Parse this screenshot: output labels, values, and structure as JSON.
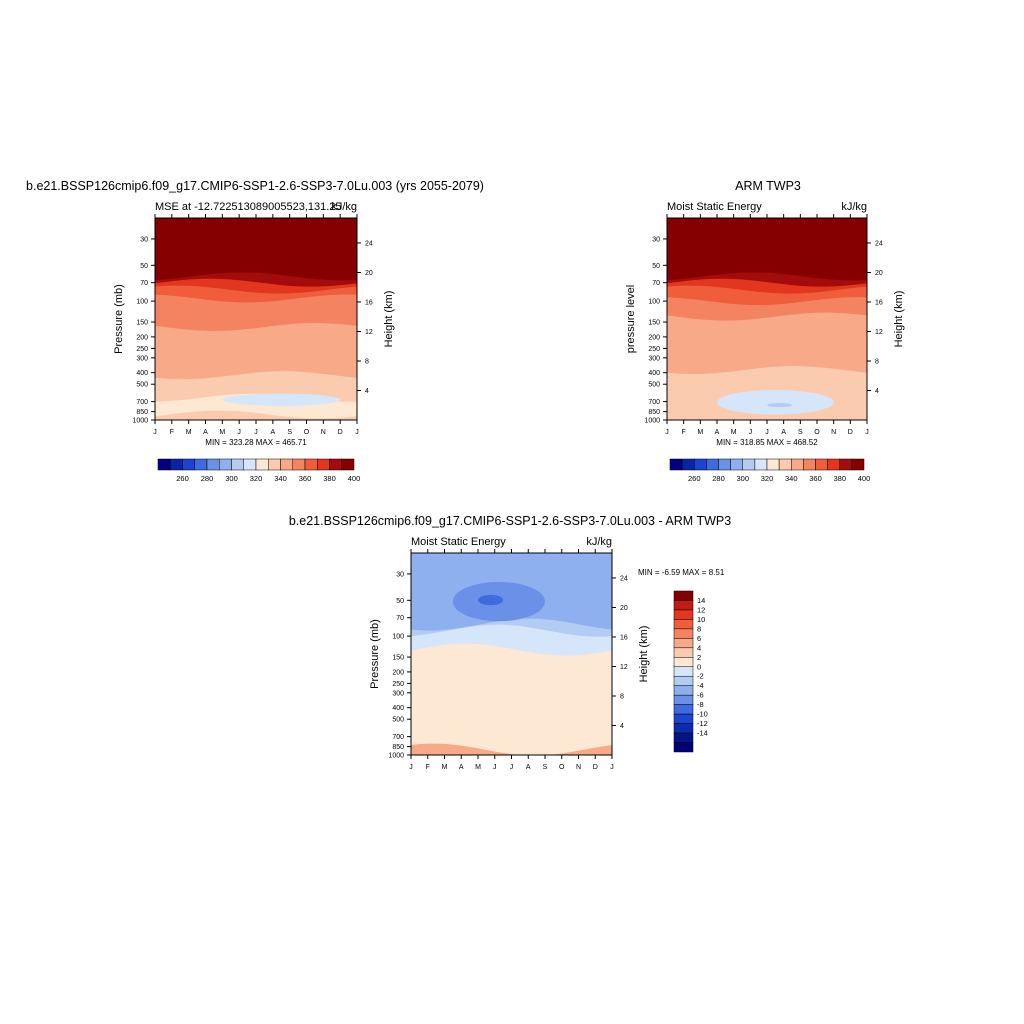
{
  "chart_data": [
    {
      "type": "heatmap",
      "title": "b.e21.BSSP126cmip6.f09_g17.CMIP6-SSP1-2.6-SSP3-7.0Lu.003 (yrs 2055-2079)",
      "left_string": "MSE at -12.722513089005523,131.25",
      "right_string": "kJ/kg",
      "ylabel": "Pressure (mb)",
      "y2label": "Height (km)",
      "x_ticks": [
        "J",
        "F",
        "M",
        "A",
        "M",
        "J",
        "J",
        "A",
        "S",
        "O",
        "N",
        "D",
        "J"
      ],
      "y_ticks": [
        30,
        50,
        70,
        100,
        150,
        200,
        250,
        300,
        400,
        500,
        700,
        850,
        1000
      ],
      "y2_ticks": [
        24,
        20,
        16,
        12,
        8,
        4
      ],
      "minmax": "MIN = 323.28 MAX = 465.71",
      "colorbar_labels": [
        260,
        280,
        300,
        320,
        340,
        360,
        380,
        400
      ],
      "bands": [
        {
          "p_top": 20,
          "p_bot": 55,
          "value": 415
        },
        {
          "p_top": 55,
          "p_bot": 62,
          "value": 405
        },
        {
          "p_top": 62,
          "p_bot": 70,
          "value": 395
        },
        {
          "p_top": 70,
          "p_bot": 80,
          "value": 385
        },
        {
          "p_top": 80,
          "p_bot": 95,
          "value": 375
        },
        {
          "p_top": 95,
          "p_bot": 165,
          "value": 365
        },
        {
          "p_top": 165,
          "p_bot": 420,
          "value": 355
        },
        {
          "p_top": 420,
          "p_bot": 650,
          "value": 345
        },
        {
          "p_top": 650,
          "p_bot": 900,
          "value": 335
        },
        {
          "p_top": 900,
          "p_bot": 1000,
          "value": 345
        }
      ],
      "blob": {
        "x_from": 4,
        "x_to": 11,
        "p_top": 600,
        "p_bot": 760,
        "value": 325
      }
    },
    {
      "type": "heatmap",
      "title": "ARM TWP3",
      "left_string": "Moist Static Energy",
      "right_string": "kJ/kg",
      "ylabel": "pressure level",
      "y2label": "Height (km)",
      "x_ticks": [
        "J",
        "F",
        "M",
        "A",
        "M",
        "J",
        "J",
        "A",
        "S",
        "O",
        "N",
        "D",
        "J"
      ],
      "y_ticks": [
        30,
        50,
        70,
        100,
        150,
        200,
        250,
        300,
        400,
        500,
        700,
        850,
        1000
      ],
      "y2_ticks": [
        24,
        20,
        16,
        12,
        8,
        4
      ],
      "minmax": "MIN = 318.85 MAX = 468.52",
      "colorbar_labels": [
        260,
        280,
        300,
        320,
        340,
        360,
        380,
        400
      ],
      "bands": [
        {
          "p_top": 20,
          "p_bot": 55,
          "value": 415
        },
        {
          "p_top": 55,
          "p_bot": 62,
          "value": 405
        },
        {
          "p_top": 62,
          "p_bot": 70,
          "value": 395
        },
        {
          "p_top": 70,
          "p_bot": 80,
          "value": 385
        },
        {
          "p_top": 80,
          "p_bot": 100,
          "value": 375
        },
        {
          "p_top": 100,
          "p_bot": 135,
          "value": 365
        },
        {
          "p_top": 135,
          "p_bot": 380,
          "value": 355
        },
        {
          "p_top": 380,
          "p_bot": 880,
          "value": 345
        },
        {
          "p_top": 880,
          "p_bot": 1000,
          "value": 345
        }
      ],
      "blob": {
        "x_from": 3,
        "x_to": 10,
        "p_top": 560,
        "p_bot": 900,
        "value": 325
      },
      "blob2": {
        "x_from": 6,
        "x_to": 7.5,
        "p_top": 720,
        "p_bot": 780,
        "value": 315
      }
    },
    {
      "type": "heatmap",
      "title": "b.e21.BSSP126cmip6.f09_g17.CMIP6-SSP1-2.6-SSP3-7.0Lu.003 - ARM TWP3",
      "left_string": "Moist Static Energy",
      "right_string": "kJ/kg",
      "ylabel": "Pressure (mb)",
      "y2label": "Height (km)",
      "x_ticks": [
        "J",
        "F",
        "M",
        "A",
        "M",
        "J",
        "J",
        "A",
        "S",
        "O",
        "N",
        "D",
        "J"
      ],
      "y_ticks": [
        30,
        50,
        70,
        100,
        150,
        200,
        250,
        300,
        400,
        500,
        700,
        850,
        1000
      ],
      "y2_ticks": [
        24,
        20,
        16,
        12,
        8,
        4
      ],
      "minmax": "MIN =  -6.59 MAX =   8.51",
      "colorbar_labels": [
        14,
        12,
        10,
        8,
        6,
        4,
        2,
        0,
        -2,
        -4,
        -6,
        -8,
        -10,
        -12,
        -14
      ],
      "bands": [
        {
          "p_top": 20,
          "p_bot": 80,
          "value": -3
        },
        {
          "p_top": 80,
          "p_bot": 90,
          "value": -1
        },
        {
          "p_top": 90,
          "p_bot": 130,
          "value": 1
        },
        {
          "p_top": 130,
          "p_bot": 900,
          "value": 3
        },
        {
          "p_top": 900,
          "p_bot": 1000,
          "value": 7
        }
      ],
      "blob": {
        "x_from": 2.5,
        "x_to": 8,
        "p_top": 35,
        "p_bot": 75,
        "value": -5
      },
      "blob2": {
        "x_from": 4,
        "x_to": 5.5,
        "p_top": 45,
        "p_bot": 55,
        "value": -7
      }
    }
  ],
  "colors": {
    "warm": [
      "#fde8d3",
      "#fbcbb0",
      "#f8a987",
      "#f48461",
      "#ef5d3b",
      "#e2361f",
      "#c51a13",
      "#a40b0b",
      "#870000"
    ],
    "cool": [
      "#d6e6fa",
      "#b3ccf4",
      "#8fb0ee",
      "#6a91e7",
      "#3f6ae0",
      "#1b44d2",
      "#0c2bae",
      "#031488",
      "#000075"
    ]
  }
}
